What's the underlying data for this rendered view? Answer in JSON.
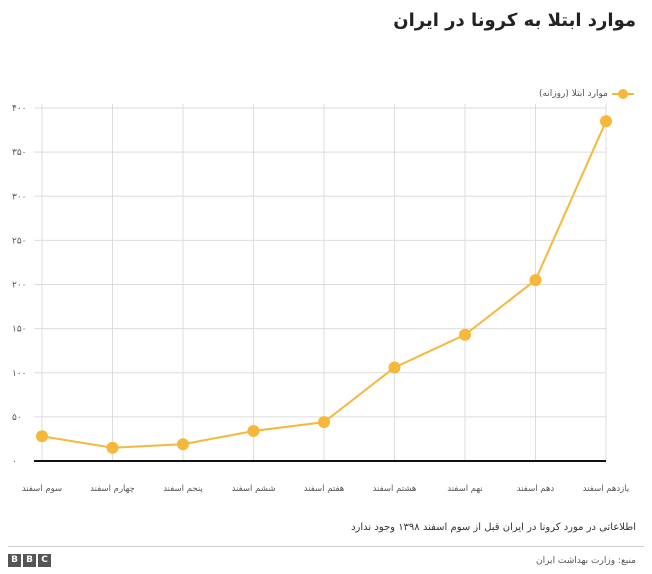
{
  "header": {
    "title": "موارد ابتلا به کرونا در ایران"
  },
  "legend": {
    "label": "موارد ابتلا (روزانه)"
  },
  "footer": {
    "note": "اطلاعاتی در مورد کرونا در ایران قبل از سوم اسفند ۱۳۹۸ وجود ندارد",
    "source": "منبع: وزارت بهداشت ایران",
    "logo_letters": [
      "B",
      "B",
      "C"
    ]
  },
  "colors": {
    "series": "#f5b83b",
    "grid": "#dddddd",
    "axis": "#111111"
  },
  "chart_data": {
    "type": "line",
    "title": "موارد ابتلا به کرونا در ایران",
    "xlabel": "",
    "ylabel": "",
    "categories": [
      "سوم اسفند",
      "چهارم اسفند",
      "پنجم اسفند",
      "ششم اسفند",
      "هفتم اسفند",
      "هشتم اسفند",
      "نهم اسفند",
      "دهم اسفند",
      "یازدهم اسفند"
    ],
    "series": [
      {
        "name": "موارد ابتلا (روزانه)",
        "values": [
          28,
          15,
          19,
          34,
          44,
          106,
          143,
          205,
          385
        ]
      }
    ],
    "ylim": [
      0,
      400
    ],
    "yticks": [
      0,
      50,
      100,
      150,
      200,
      250,
      300,
      350,
      400
    ],
    "ytick_labels": [
      "۰",
      "۵۰",
      "۱۰۰",
      "۱۵۰",
      "۲۰۰",
      "۲۵۰",
      "۳۰۰",
      "۳۵۰",
      "۴۰۰"
    ],
    "grid": true,
    "legend_position": "top-right"
  }
}
